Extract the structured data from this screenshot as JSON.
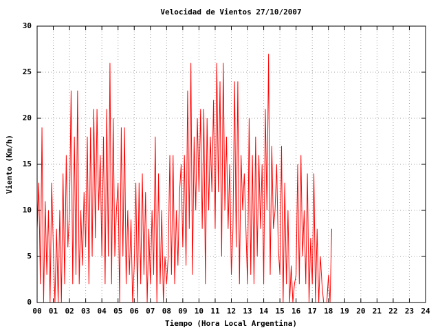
{
  "chart_data": {
    "type": "line",
    "title": "Velocidad de Vientos 27/10/2007",
    "x_label": "Tiempo (Hora Local Argentina)",
    "y_label": "Viento (Km/h)",
    "color": "#ff0000",
    "grid": true,
    "xlim": [
      0,
      24
    ],
    "ylim": [
      0,
      30
    ],
    "xticks": [
      {
        "value": 0,
        "label": "00"
      },
      {
        "value": 1,
        "label": "01"
      },
      {
        "value": 2,
        "label": "02"
      },
      {
        "value": 3,
        "label": "03"
      },
      {
        "value": 4,
        "label": "04"
      },
      {
        "value": 5,
        "label": "05"
      },
      {
        "value": 6,
        "label": "06"
      },
      {
        "value": 7,
        "label": "07"
      },
      {
        "value": 8,
        "label": "08"
      },
      {
        "value": 9,
        "label": "09"
      },
      10,
      11,
      12,
      13,
      14,
      15,
      16,
      17,
      18,
      19,
      20,
      21,
      22,
      23,
      24
    ],
    "yticks": [
      0,
      5,
      10,
      15,
      20,
      25,
      30
    ],
    "x": [
      0,
      0.1,
      0.2,
      0.3,
      0.4,
      0.5,
      0.6,
      0.7,
      0.8,
      0.9,
      1,
      1.1,
      1.2,
      1.3,
      1.4,
      1.5,
      1.6,
      1.7,
      1.8,
      1.9,
      2,
      2.1,
      2.2,
      2.3,
      2.4,
      2.5,
      2.6,
      2.7,
      2.8,
      2.9,
      3,
      3.1,
      3.2,
      3.3,
      3.4,
      3.5,
      3.6,
      3.7,
      3.8,
      3.9,
      4,
      4.1,
      4.2,
      4.3,
      4.4,
      4.5,
      4.6,
      4.7,
      4.8,
      4.9,
      5,
      5.1,
      5.2,
      5.3,
      5.4,
      5.5,
      5.6,
      5.7,
      5.8,
      5.9,
      6,
      6.1,
      6.2,
      6.3,
      6.4,
      6.5,
      6.6,
      6.7,
      6.8,
      6.9,
      7,
      7.1,
      7.2,
      7.3,
      7.4,
      7.5,
      7.6,
      7.7,
      7.8,
      7.9,
      8,
      8.1,
      8.2,
      8.3,
      8.4,
      8.5,
      8.6,
      8.7,
      8.8,
      8.9,
      9,
      9.1,
      9.2,
      9.3,
      9.4,
      9.5,
      9.6,
      9.7,
      9.8,
      9.9,
      10,
      10.1,
      10.2,
      10.3,
      10.4,
      10.5,
      10.6,
      10.7,
      10.8,
      10.9,
      11,
      11.1,
      11.2,
      11.3,
      11.4,
      11.5,
      11.6,
      11.7,
      11.8,
      11.9,
      12,
      12.1,
      12.2,
      12.3,
      12.4,
      12.5,
      12.6,
      12.7,
      12.8,
      12.9,
      13,
      13.1,
      13.2,
      13.3,
      13.4,
      13.5,
      13.6,
      13.7,
      13.8,
      13.9,
      14,
      14.1,
      14.2,
      14.3,
      14.4,
      14.5,
      14.6,
      14.7,
      14.8,
      14.9,
      15,
      15.1,
      15.2,
      15.3,
      15.4,
      15.5,
      15.6,
      15.7,
      15.8,
      15.9,
      16,
      16.1,
      16.2,
      16.3,
      16.4,
      16.5,
      16.6,
      16.7,
      16.8,
      16.9,
      17,
      17.1,
      17.2,
      17.3,
      17.4,
      17.5,
      17.6,
      17.7,
      17.8,
      17.9,
      18,
      18.1,
      18.2
    ],
    "values": [
      8,
      13,
      2,
      19,
      0,
      11,
      3,
      10,
      0,
      13,
      6,
      0,
      8,
      0,
      10,
      0,
      14,
      2,
      16,
      6,
      10,
      23,
      2,
      18,
      3,
      23,
      2,
      10,
      4,
      12,
      6,
      18,
      2,
      19,
      5,
      21,
      7,
      21,
      10,
      16,
      5,
      18,
      2,
      21,
      5,
      26,
      2,
      20,
      5,
      10,
      13,
      0,
      19,
      5,
      19,
      2,
      10,
      3,
      9,
      0,
      4,
      13,
      0,
      13,
      2,
      14,
      3,
      12,
      0,
      8,
      2,
      10,
      3,
      18,
      0,
      14,
      2,
      10,
      0,
      5,
      2,
      5,
      16,
      3,
      16,
      2,
      10,
      4,
      12,
      15,
      6,
      16,
      4,
      23,
      8,
      26,
      3,
      18,
      10,
      20,
      12,
      21,
      8,
      21,
      2,
      20,
      10,
      18,
      12,
      22,
      8,
      26,
      12,
      24,
      5,
      26,
      10,
      18,
      8,
      15,
      3,
      8,
      24,
      6,
      24,
      2,
      16,
      10,
      14,
      8,
      2,
      20,
      3,
      16,
      2,
      18,
      5,
      16,
      8,
      15,
      2,
      21,
      10,
      27,
      3,
      17,
      8,
      10,
      15,
      6,
      3,
      17,
      0,
      13,
      2,
      10,
      0,
      4,
      0,
      2,
      3,
      15,
      2,
      16,
      5,
      10,
      2,
      14,
      0,
      7,
      2,
      14,
      0,
      8,
      0,
      5,
      2,
      0,
      0,
      0,
      3,
      0,
      8
    ]
  }
}
